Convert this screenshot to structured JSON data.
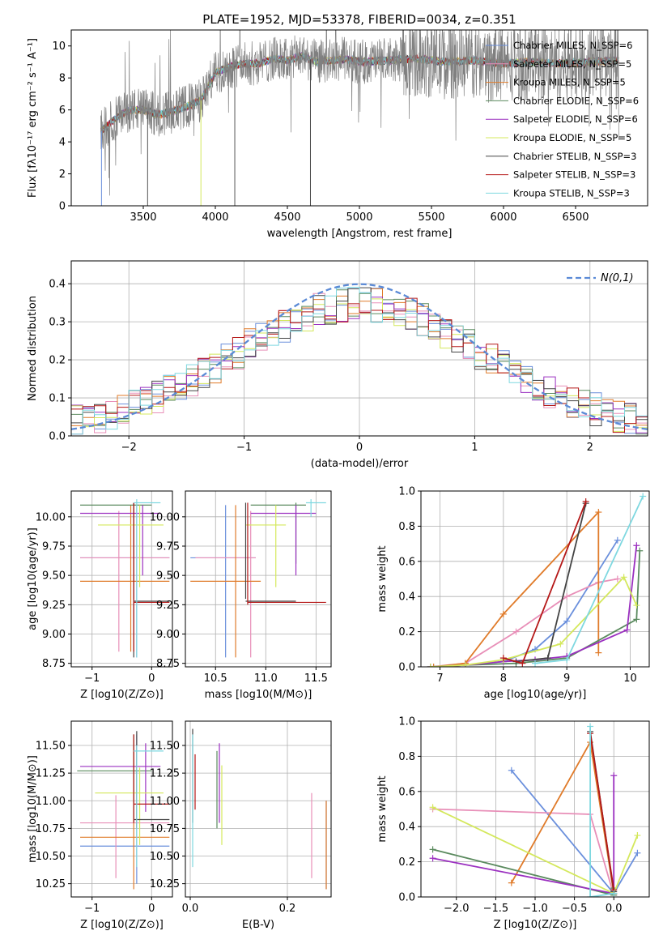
{
  "colors": {
    "s0": "#6a8fdc",
    "s1": "#e88fb8",
    "s2": "#e07b2a",
    "s3": "#5a8a5e",
    "s4": "#9b30c0",
    "s5": "#d4e85c",
    "s6": "#444444",
    "s7": "#b51818",
    "s8": "#7fd8e0",
    "gauss": "#5b8ad6",
    "grid": "#b0b0b0"
  },
  "series_names": [
    "Chabrier MILES, N_SSP=6",
    "Salpeter MILES, N_SSP=5",
    "Kroupa MILES, N_SSP=5",
    "Chabrier ELODIE, N_SSP=6",
    "Salpeter ELODIE, N_SSP=6",
    "Kroupa ELODIE, N_SSP=5",
    "Chabrier STELIB, N_SSP=3",
    "Salpeter STELIB, N_SSP=3",
    "Kroupa STELIB, N_SSP=3"
  ],
  "chart_data": [
    {
      "id": "spectrum",
      "type": "line",
      "title": "PLATE=1952, MJD=53378, FIBERID=0034, z=0.351",
      "xlabel": "wavelength [Angstrom, rest frame]",
      "ylabel": "Flux [fλ10⁻¹⁷ erg cm⁻² s⁻¹ A⁻¹]",
      "xlim": [
        3000,
        7000
      ],
      "ylim": [
        0,
        11
      ],
      "xticks": [
        3500,
        4000,
        4500,
        5000,
        5500,
        6000,
        6500
      ],
      "yticks": [
        0,
        2,
        4,
        6,
        8,
        10
      ],
      "legend": "top-right",
      "data_continuum": {
        "x": [
          3200,
          3300,
          3400,
          3500,
          3600,
          3700,
          3800,
          3900,
          4000,
          4100,
          4200,
          4300,
          4400,
          4500,
          4600,
          4700,
          4800,
          4900,
          5000,
          5200,
          5400,
          5600,
          5800,
          6000,
          6200,
          6400,
          6600,
          6800
        ],
        "y": [
          4.6,
          5.4,
          6.0,
          6.0,
          5.7,
          5.9,
          6.2,
          6.6,
          8.3,
          8.7,
          8.9,
          8.9,
          9.2,
          9.1,
          9.4,
          9.0,
          9.1,
          9.2,
          9.0,
          9.1,
          9.2,
          9.0,
          9.1,
          8.9,
          9.0,
          8.9,
          9.0,
          9.1
        ]
      }
    },
    {
      "id": "residuals",
      "type": "histogram",
      "xlabel": "(data-model)/error",
      "ylabel": "Normed distribution",
      "xlim": [
        -2.5,
        2.5
      ],
      "ylim": [
        0,
        0.46
      ],
      "xticks": [
        -2,
        -1,
        0,
        1,
        2
      ],
      "yticks": [
        0.0,
        0.1,
        0.2,
        0.3,
        0.4
      ],
      "legend": "N(0,1)",
      "bin_width": 0.1,
      "bins_start": -2.5
    },
    {
      "id": "age-Z",
      "type": "errorbar",
      "xlabel": "Z [log10(Z/Z⊙)]",
      "ylabel": "age  [log10(age/yr)]",
      "xlim": [
        -1.35,
        0.35
      ],
      "ylim": [
        8.72,
        10.22
      ],
      "xticks": [
        -1,
        0
      ],
      "yticks": [
        8.75,
        9.0,
        9.25,
        9.5,
        9.75,
        10.0
      ],
      "points": [
        {
          "s": 0,
          "x": -0.25,
          "y": 9.65,
          "ex": [
            -1.2,
            0.3
          ],
          "ey": [
            8.8,
            10.1
          ]
        },
        {
          "s": 1,
          "x": -0.55,
          "y": 9.65,
          "ex": [
            -1.2,
            0.3
          ],
          "ey": [
            8.85,
            10.05
          ]
        },
        {
          "s": 2,
          "x": -0.35,
          "y": 9.45,
          "ex": [
            -1.2,
            0.3
          ],
          "ey": [
            8.85,
            10.1
          ]
        },
        {
          "s": 3,
          "x": -0.3,
          "y": 10.1,
          "ex": [
            -1.2,
            0.0
          ],
          "ey": [
            9.3,
            10.12
          ]
        },
        {
          "s": 4,
          "x": -0.15,
          "y": 10.03,
          "ex": [
            -1.2,
            0.15
          ],
          "ey": [
            9.5,
            10.1
          ]
        },
        {
          "s": 5,
          "x": -0.2,
          "y": 9.93,
          "ex": [
            -0.9,
            0.2
          ],
          "ey": [
            9.4,
            10.1
          ]
        },
        {
          "s": 6,
          "x": -0.3,
          "y": 9.28,
          "ex": [
            -0.3,
            0.3
          ],
          "ey": [
            8.8,
            10.12
          ]
        },
        {
          "s": 7,
          "x": -0.3,
          "y": 9.27,
          "ex": [
            -0.3,
            0.3
          ],
          "ey": [
            8.85,
            10.12
          ]
        },
        {
          "s": 8,
          "x": -0.25,
          "y": 10.12,
          "ex": [
            -0.3,
            0.15
          ],
          "ey": [
            8.8,
            10.15
          ]
        }
      ]
    },
    {
      "id": "age-mass",
      "type": "errorbar",
      "xlabel": "mass [log10(M/M⊙)]",
      "ylabel": "",
      "xlim": [
        10.2,
        11.65
      ],
      "ylim": [
        8.72,
        10.22
      ],
      "xticks": [
        10.5,
        11.0,
        11.5
      ],
      "yticks": [
        8.75,
        9.0,
        9.25,
        9.5,
        9.75,
        10.0
      ],
      "points": [
        {
          "s": 0,
          "x": 10.6,
          "y": 9.65,
          "ex": [
            10.25,
            10.9
          ],
          "ey": [
            8.8,
            10.1
          ]
        },
        {
          "s": 1,
          "x": 10.85,
          "y": 9.65,
          "ex": [
            10.3,
            10.9
          ],
          "ey": [
            8.8,
            10.05
          ]
        },
        {
          "s": 2,
          "x": 10.7,
          "y": 9.45,
          "ex": [
            10.25,
            10.95
          ],
          "ey": [
            8.8,
            10.1
          ]
        },
        {
          "s": 3,
          "x": 11.3,
          "y": 10.1,
          "ex": [
            10.85,
            11.4
          ],
          "ey": [
            9.6,
            10.12
          ]
        },
        {
          "s": 4,
          "x": 11.3,
          "y": 10.03,
          "ex": [
            10.85,
            11.5
          ],
          "ey": [
            9.5,
            10.1
          ]
        },
        {
          "s": 5,
          "x": 11.1,
          "y": 9.93,
          "ex": [
            10.8,
            11.2
          ],
          "ey": [
            9.4,
            10.1
          ]
        },
        {
          "s": 6,
          "x": 10.8,
          "y": 9.28,
          "ex": [
            10.8,
            11.3
          ],
          "ey": [
            9.3,
            10.12
          ]
        },
        {
          "s": 7,
          "x": 10.82,
          "y": 9.27,
          "ex": [
            10.82,
            11.6
          ],
          "ey": [
            9.25,
            10.12
          ]
        },
        {
          "s": 8,
          "x": 11.45,
          "y": 10.12,
          "ex": [
            11.4,
            11.6
          ],
          "ey": [
            10.0,
            10.15
          ]
        }
      ]
    },
    {
      "id": "weight-age",
      "type": "line",
      "xlabel": "age  [log10(age/yr)]",
      "ylabel": "mass weight",
      "xlim": [
        6.7,
        10.3
      ],
      "ylim": [
        0,
        1
      ],
      "xticks": [
        7,
        8,
        9,
        10
      ],
      "yticks": [
        0.0,
        0.2,
        0.4,
        0.6,
        0.8,
        1.0
      ],
      "series": [
        {
          "s": 0,
          "x": [
            6.85,
            7.4,
            8.0,
            8.5,
            9.0,
            9.8
          ],
          "y": [
            0.0,
            0.01,
            0.03,
            0.1,
            0.26,
            0.72
          ]
        },
        {
          "s": 1,
          "x": [
            6.85,
            7.4,
            8.2,
            9.0,
            9.5,
            9.8
          ],
          "y": [
            0.0,
            0.02,
            0.2,
            0.4,
            0.48,
            0.5
          ]
        },
        {
          "s": 2,
          "x": [
            6.9,
            7.4,
            8.0,
            9.5,
            9.5
          ],
          "y": [
            0.0,
            0.02,
            0.3,
            0.88,
            0.08
          ]
        },
        {
          "s": 3,
          "x": [
            6.85,
            7.4,
            8.2,
            9.0,
            10.1,
            10.15
          ],
          "y": [
            0.0,
            0.01,
            0.02,
            0.05,
            0.27,
            0.66
          ]
        },
        {
          "s": 4,
          "x": [
            6.85,
            7.4,
            8.0,
            8.5,
            9.0,
            9.95,
            10.1
          ],
          "y": [
            0.0,
            0.01,
            0.03,
            0.04,
            0.06,
            0.21,
            0.69
          ]
        },
        {
          "s": 5,
          "x": [
            6.85,
            7.4,
            8.0,
            8.9,
            9.9,
            10.1
          ],
          "y": [
            0.0,
            0.01,
            0.04,
            0.13,
            0.51,
            0.35
          ]
        },
        {
          "s": 6,
          "x": [
            8.2,
            8.7,
            9.3
          ],
          "y": [
            0.03,
            0.05,
            0.93
          ]
        },
        {
          "s": 7,
          "x": [
            8.0,
            8.3,
            9.3
          ],
          "y": [
            0.05,
            0.02,
            0.94
          ]
        },
        {
          "s": 8,
          "x": [
            8.5,
            9.0,
            10.2
          ],
          "y": [
            0.02,
            0.04,
            0.97
          ]
        }
      ]
    },
    {
      "id": "mass-Z",
      "type": "errorbar",
      "xlabel": "Z [log10(Z/Z⊙)]",
      "ylabel": "mass [log10(M/M⊙)]",
      "xlim": [
        -1.35,
        0.35
      ],
      "ylim": [
        10.13,
        11.72
      ],
      "xticks": [
        -1,
        0
      ],
      "yticks": [
        10.25,
        10.5,
        10.75,
        11.0,
        11.25,
        11.5
      ],
      "points": [
        {
          "s": 0,
          "x": -0.25,
          "y": 10.59,
          "ex": [
            -1.2,
            0.3
          ],
          "ey": [
            10.25,
            11.6
          ]
        },
        {
          "s": 1,
          "x": -0.6,
          "y": 10.8,
          "ex": [
            -1.2,
            0.3
          ],
          "ey": [
            10.3,
            11.05
          ]
        },
        {
          "s": 2,
          "x": -0.3,
          "y": 10.67,
          "ex": [
            -1.2,
            0.3
          ],
          "ey": [
            10.2,
            11.55
          ]
        },
        {
          "s": 3,
          "x": -0.3,
          "y": 11.27,
          "ex": [
            -1.25,
            0.0
          ],
          "ey": [
            10.8,
            11.6
          ]
        },
        {
          "s": 4,
          "x": -0.1,
          "y": 11.31,
          "ex": [
            -1.2,
            0.15
          ],
          "ey": [
            10.9,
            11.52
          ]
        },
        {
          "s": 5,
          "x": -0.2,
          "y": 11.07,
          "ex": [
            -0.95,
            0.2
          ],
          "ey": [
            10.6,
            11.3
          ]
        },
        {
          "s": 6,
          "x": -0.25,
          "y": 10.83,
          "ex": [
            -0.3,
            0.3
          ],
          "ey": [
            10.75,
            11.63
          ]
        },
        {
          "s": 7,
          "x": -0.3,
          "y": 10.97,
          "ex": [
            -0.3,
            0.3
          ],
          "ey": [
            10.8,
            11.6
          ]
        },
        {
          "s": 8,
          "x": -0.25,
          "y": 11.45,
          "ex": [
            -0.3,
            0.2
          ],
          "ey": [
            10.4,
            11.5
          ]
        }
      ]
    },
    {
      "id": "mass-ebv",
      "type": "errorbar",
      "xlabel": "E(B-V)",
      "ylabel": "",
      "xlim": [
        -0.01,
        0.29
      ],
      "ylim": [
        10.13,
        11.72
      ],
      "xticks": [
        0.0,
        0.2
      ],
      "yticks": [
        10.25,
        10.5,
        10.75,
        11.0,
        11.25,
        11.5
      ],
      "points": [
        {
          "s": 0,
          "x": 0.28,
          "ey": [
            10.2,
            11.0
          ]
        },
        {
          "s": 1,
          "x": 0.25,
          "ey": [
            10.3,
            11.07
          ]
        },
        {
          "s": 2,
          "x": 0.28,
          "ey": [
            10.2,
            11.0
          ]
        },
        {
          "s": 3,
          "x": 0.055,
          "ey": [
            10.75,
            11.45
          ]
        },
        {
          "s": 4,
          "x": 0.06,
          "ey": [
            10.8,
            11.52
          ]
        },
        {
          "s": 5,
          "x": 0.065,
          "ey": [
            10.6,
            11.32
          ]
        },
        {
          "s": 6,
          "x": 0.005,
          "ey": [
            10.8,
            11.65
          ]
        },
        {
          "s": 7,
          "x": 0.01,
          "ey": [
            10.92,
            11.42
          ]
        },
        {
          "s": 8,
          "x": 0.005,
          "ey": [
            10.4,
            11.6
          ]
        }
      ]
    },
    {
      "id": "weight-Z",
      "type": "line",
      "xlabel": "Z [log10(Z/Z⊙)]",
      "ylabel": "mass weight",
      "xlim": [
        -2.45,
        0.45
      ],
      "ylim": [
        0,
        1
      ],
      "xticks": [
        -2.0,
        -1.5,
        -1.0,
        -0.5,
        0.0
      ],
      "yticks": [
        0.0,
        0.2,
        0.4,
        0.6,
        0.8,
        1.0
      ],
      "series": [
        {
          "s": 0,
          "x": [
            -1.3,
            0.0,
            0.3
          ],
          "y": [
            0.72,
            0.02,
            0.25
          ]
        },
        {
          "s": 1,
          "x": [
            -2.3,
            -0.3,
            0.0
          ],
          "y": [
            0.5,
            0.47,
            0.01
          ]
        },
        {
          "s": 2,
          "x": [
            -1.3,
            -0.3,
            0.0
          ],
          "y": [
            0.08,
            0.88,
            0.02
          ]
        },
        {
          "s": 3,
          "x": [
            -2.3,
            0.0,
            0.0
          ],
          "y": [
            0.27,
            0.01,
            0.05
          ]
        },
        {
          "s": 4,
          "x": [
            -2.3,
            0.0,
            0.0
          ],
          "y": [
            0.22,
            0.02,
            0.69
          ]
        },
        {
          "s": 5,
          "x": [
            -2.3,
            0.0,
            0.3
          ],
          "y": [
            0.51,
            0.02,
            0.35
          ]
        },
        {
          "s": 6,
          "x": [
            -0.3,
            0.0
          ],
          "y": [
            0.94,
            0.03
          ]
        },
        {
          "s": 7,
          "x": [
            -0.3,
            0.0
          ],
          "y": [
            0.93,
            0.04
          ]
        },
        {
          "s": 8,
          "x": [
            -0.3,
            -0.3,
            0.0
          ],
          "y": [
            0.97,
            0.0,
            0.02
          ]
        }
      ]
    }
  ]
}
